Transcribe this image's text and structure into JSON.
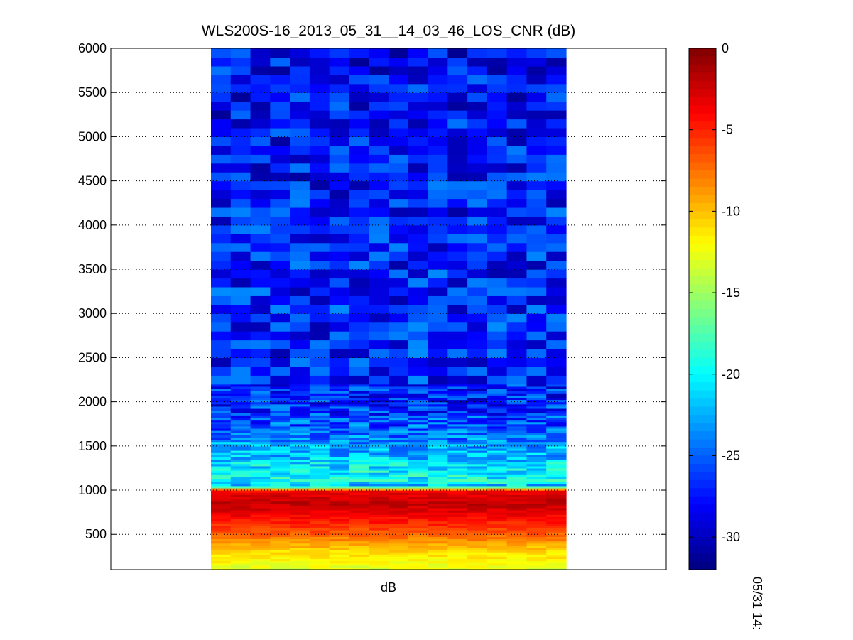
{
  "chart_data": {
    "type": "heatmap",
    "title": "WLS200S-16_2013_05_31__14_03_46_LOS_CNR (dB)",
    "xlabel": "dB",
    "ylabel": "",
    "time_label": "05/31 14:",
    "ylim": [
      100,
      6000
    ],
    "yticks": [
      500,
      1000,
      1500,
      2000,
      2500,
      3000,
      3500,
      4000,
      4500,
      5000,
      5500,
      6000
    ],
    "grid": "horizontal-dotted",
    "colormap": "jet",
    "colorbar": {
      "clim": [
        -32,
        0
      ],
      "ticks": [
        0,
        -5,
        -10,
        -15,
        -20,
        -25,
        -30
      ]
    },
    "columns": 18,
    "profile": [
      {
        "range": 100,
        "value": -13
      },
      {
        "range": 300,
        "value": -11
      },
      {
        "range": 500,
        "value": -7
      },
      {
        "range": 700,
        "value": -4
      },
      {
        "range": 850,
        "value": -2
      },
      {
        "range": 950,
        "value": -3
      },
      {
        "range": 1000,
        "value": -4
      },
      {
        "range": 1050,
        "value": -22
      },
      {
        "range": 1100,
        "value": -20
      },
      {
        "range": 1200,
        "value": -20
      },
      {
        "range": 1300,
        "value": -21
      },
      {
        "range": 1500,
        "value": -23
      },
      {
        "range": 1700,
        "value": -25
      },
      {
        "range": 2000,
        "value": -27
      },
      {
        "range": 3000,
        "value": -27
      },
      {
        "range": 6000,
        "value": -28
      }
    ]
  }
}
